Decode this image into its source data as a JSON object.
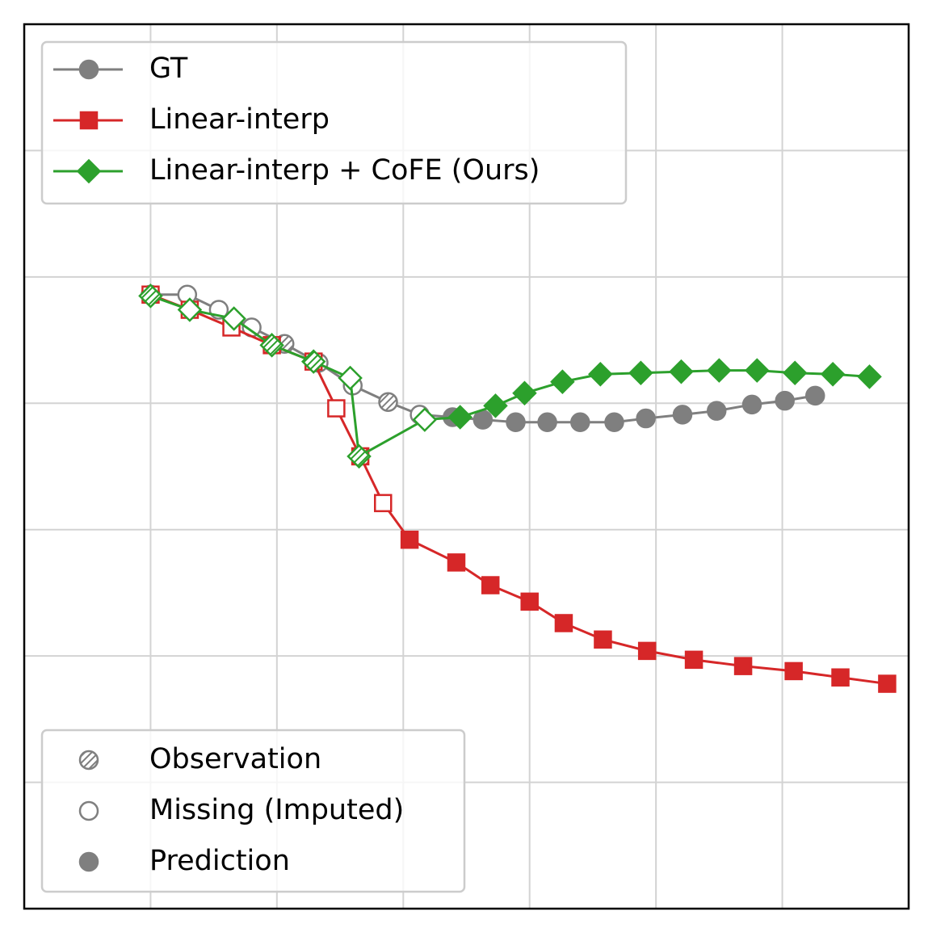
{
  "chart_data": {
    "type": "line",
    "xlim": [
      0,
      7
    ],
    "ylim": [
      0,
      7
    ],
    "xticks": [
      1,
      2,
      3,
      4,
      5,
      6
    ],
    "yticks": [
      1,
      2,
      3,
      4,
      5,
      6
    ],
    "grid": true,
    "series": [
      {
        "name": "GT",
        "color": "#7f7f7f",
        "marker": "circle",
        "x": [
          1.0,
          1.29,
          1.54,
          1.8,
          2.06,
          2.33,
          2.6,
          2.88,
          3.13,
          3.39,
          3.63,
          3.89,
          4.14,
          4.4,
          4.67,
          4.92,
          5.21,
          5.48,
          5.76,
          6.02,
          6.26
        ],
        "values": [
          4.86,
          4.86,
          4.74,
          4.6,
          4.47,
          4.32,
          4.14,
          4.01,
          3.91,
          3.89,
          3.87,
          3.85,
          3.85,
          3.85,
          3.85,
          3.88,
          3.91,
          3.94,
          3.99,
          4.02,
          4.06
        ],
        "status": [
          0,
          1,
          1,
          1,
          0,
          1,
          1,
          0,
          1,
          2,
          2,
          2,
          2,
          2,
          2,
          2,
          2,
          2,
          2,
          2,
          2
        ]
      },
      {
        "name": "Linear-interp",
        "color": "#d62728",
        "marker": "square",
        "x": [
          1.0,
          1.31,
          1.64,
          1.96,
          2.29,
          2.47,
          2.66,
          2.84,
          3.05,
          3.42,
          3.69,
          4.0,
          4.27,
          4.58,
          4.93,
          5.3,
          5.69,
          6.09,
          6.46,
          6.83
        ],
        "values": [
          4.86,
          4.74,
          4.6,
          4.46,
          4.33,
          3.96,
          3.58,
          3.21,
          2.92,
          2.74,
          2.56,
          2.43,
          2.26,
          2.13,
          2.04,
          1.97,
          1.92,
          1.88,
          1.83,
          1.78
        ],
        "status": [
          1,
          1,
          1,
          0,
          0,
          1,
          0,
          1,
          2,
          2,
          2,
          2,
          2,
          2,
          2,
          2,
          2,
          2,
          2,
          2
        ]
      },
      {
        "name": "Linear-interp + CoFE (Ours)",
        "color": "#2ca02c",
        "marker": "diamond",
        "x": [
          1.0,
          1.31,
          1.66,
          1.96,
          2.29,
          2.58,
          2.65,
          3.17,
          3.45,
          3.73,
          3.96,
          4.26,
          4.56,
          4.88,
          5.2,
          5.5,
          5.8,
          6.1,
          6.4,
          6.69
        ],
        "values": [
          4.85,
          4.74,
          4.67,
          4.46,
          4.33,
          4.2,
          3.58,
          3.87,
          3.89,
          3.98,
          4.08,
          4.17,
          4.23,
          4.24,
          4.25,
          4.26,
          4.26,
          4.24,
          4.23,
          4.21
        ],
        "status": [
          0,
          1,
          1,
          0,
          0,
          1,
          0,
          1,
          2,
          2,
          2,
          2,
          2,
          2,
          2,
          2,
          2,
          2,
          2,
          2
        ]
      }
    ],
    "legend": "upper left",
    "marker_legend": {
      "location": "lower left",
      "color": "#7f7f7f",
      "entries": [
        "Observation",
        "Missing (Imputed)",
        "Prediction"
      ]
    }
  }
}
